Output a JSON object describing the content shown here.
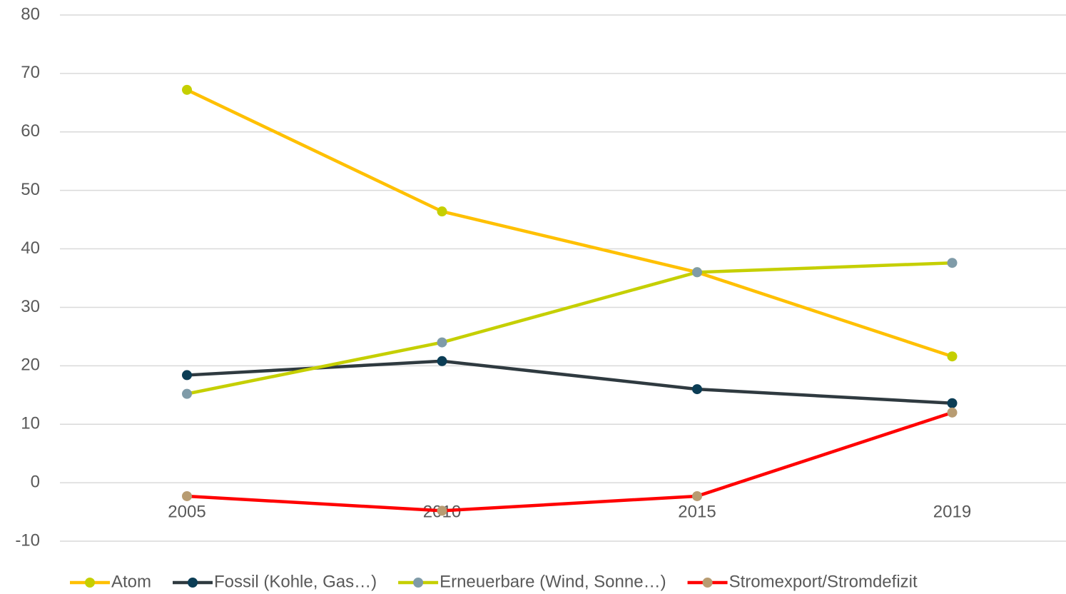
{
  "chart_data": {
    "type": "line",
    "categories": [
      "2005",
      "2010",
      "2015",
      "2019"
    ],
    "series": [
      {
        "name": "Atom",
        "color": "#ffc000",
        "marker_color": "#c5cf00",
        "values": [
          67.2,
          46.4,
          36,
          21.6
        ]
      },
      {
        "name": "Fossil (Kohle, Gas…)",
        "color": "#2f3a40",
        "marker_color": "#0b3d55",
        "values": [
          18.4,
          20.8,
          16,
          13.6
        ]
      },
      {
        "name": "Erneuerbare (Wind, Sonne…)",
        "color": "#c5cf00",
        "marker_color": "#7f9ba8",
        "values": [
          15.2,
          24,
          36,
          37.6
        ]
      },
      {
        "name": "Stromexport/Stromdefizit",
        "color": "#ff0000",
        "marker_color": "#b89c72",
        "values": [
          -2.3,
          -4.8,
          -2.3,
          12
        ]
      }
    ],
    "ylim": [
      -10,
      80
    ],
    "yticks": [
      -10,
      0,
      10,
      20,
      30,
      40,
      50,
      60,
      70,
      80
    ],
    "grid": true,
    "legend": "bottom"
  }
}
